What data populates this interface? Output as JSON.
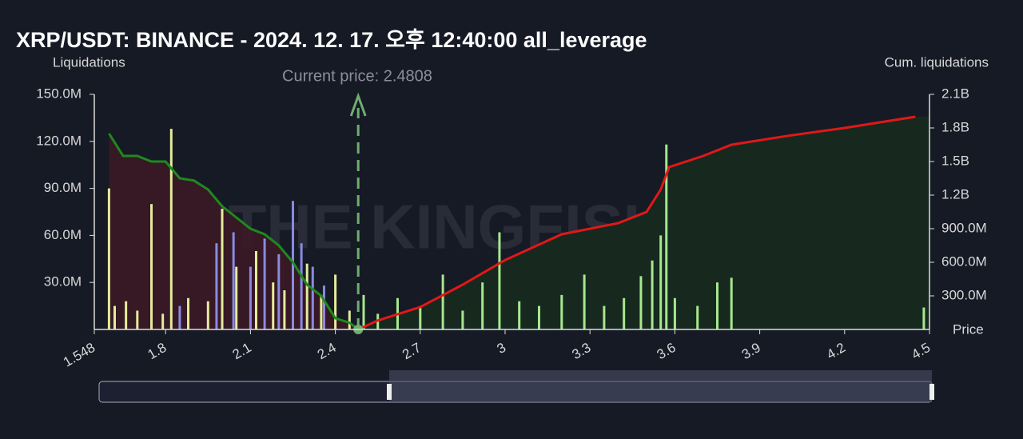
{
  "chart_data": {
    "type": "liquidation-map",
    "title": "XRP/USDT: BINANCE - 2024. 12. 17. 오후 12:40:00 all_leverage",
    "y_label": "Liquidations",
    "y2_label": "Cum. liquidations",
    "x_label": "Price",
    "annotation": "Current price: 2.4808",
    "current_price": 2.4808,
    "watermark": "THE KINGFISHER",
    "xlim": [
      1.548,
      4.5
    ],
    "xticks": [
      1.548,
      1.8,
      2.1,
      2.4,
      2.7,
      3,
      3.3,
      3.6,
      3.9,
      4.2,
      4.5
    ],
    "ylim": [
      0,
      150000000
    ],
    "yticks": [
      {
        "value": 30000000,
        "label": "30.0M"
      },
      {
        "value": 60000000,
        "label": "60.0M"
      },
      {
        "value": 90000000,
        "label": "90.0M"
      },
      {
        "value": 120000000,
        "label": "120.0M"
      },
      {
        "value": 150000000,
        "label": "150.0M"
      }
    ],
    "y2lim": [
      0,
      2100000000
    ],
    "y2ticks": [
      {
        "value": 300000000,
        "label": "300.0M"
      },
      {
        "value": 600000000,
        "label": "600.0M"
      },
      {
        "value": 900000000,
        "label": "900.0M"
      },
      {
        "value": 1200000000,
        "label": "1.2B"
      },
      {
        "value": 1500000000,
        "label": "1.5B"
      },
      {
        "value": 1800000000,
        "label": "1.8B"
      },
      {
        "value": 2100000000,
        "label": "2.1B"
      }
    ],
    "bar_groups": [
      {
        "color": "#e6eb9a",
        "x": [
          1.6,
          1.62,
          1.66,
          1.7,
          1.75,
          1.79,
          1.82,
          1.88,
          1.95,
          2.0,
          2.05,
          2.12,
          2.18,
          2.22,
          2.3,
          2.35,
          2.4,
          2.45
        ],
        "values": [
          90000000,
          15000000,
          18000000,
          12000000,
          80000000,
          10000000,
          128000000,
          20000000,
          18000000,
          77000000,
          40000000,
          50000000,
          30000000,
          25000000,
          42000000,
          22000000,
          35000000,
          12000000
        ]
      },
      {
        "color": "#8a8ae0",
        "x": [
          1.85,
          1.98,
          2.04,
          2.1,
          2.15,
          2.2,
          2.25,
          2.28,
          2.32,
          2.36
        ],
        "values": [
          15000000,
          55000000,
          62000000,
          40000000,
          58000000,
          48000000,
          82000000,
          55000000,
          40000000,
          28000000
        ]
      },
      {
        "color": "#a6e88e",
        "x": [
          2.5,
          2.55,
          2.62,
          2.7,
          2.78,
          2.85,
          2.92,
          2.98,
          3.05,
          3.12,
          3.2,
          3.28,
          3.35,
          3.42,
          3.48,
          3.52,
          3.55,
          3.57,
          3.6,
          3.68,
          3.75,
          3.8,
          4.48
        ],
        "values": [
          22000000,
          10000000,
          20000000,
          15000000,
          35000000,
          12000000,
          30000000,
          62000000,
          18000000,
          15000000,
          22000000,
          35000000,
          15000000,
          20000000,
          34000000,
          44000000,
          60000000,
          118000000,
          20000000,
          15000000,
          30000000,
          33000000,
          14000000
        ]
      }
    ],
    "cum_left": {
      "color": "#1e8a1e",
      "axis": "y2",
      "x": [
        1.6,
        1.65,
        1.7,
        1.75,
        1.8,
        1.85,
        1.9,
        1.95,
        2.0,
        2.05,
        2.1,
        2.15,
        2.2,
        2.25,
        2.3,
        2.35,
        2.4,
        2.45,
        2.4808
      ],
      "values": [
        1750000000,
        1550000000,
        1550000000,
        1500000000,
        1500000000,
        1350000000,
        1330000000,
        1250000000,
        1100000000,
        1000000000,
        900000000,
        850000000,
        750000000,
        600000000,
        400000000,
        300000000,
        100000000,
        60000000,
        0
      ]
    },
    "cum_right": {
      "color": "#e01818",
      "axis": "y2",
      "x": [
        2.4808,
        2.55,
        2.7,
        2.85,
        3.0,
        3.2,
        3.4,
        3.5,
        3.55,
        3.58,
        3.7,
        3.8,
        4.0,
        4.2,
        4.45
      ],
      "values": [
        0,
        80000000,
        200000000,
        400000000,
        620000000,
        850000000,
        950000000,
        1050000000,
        1250000000,
        1450000000,
        1550000000,
        1650000000,
        1730000000,
        1800000000,
        1900000000
      ]
    }
  }
}
